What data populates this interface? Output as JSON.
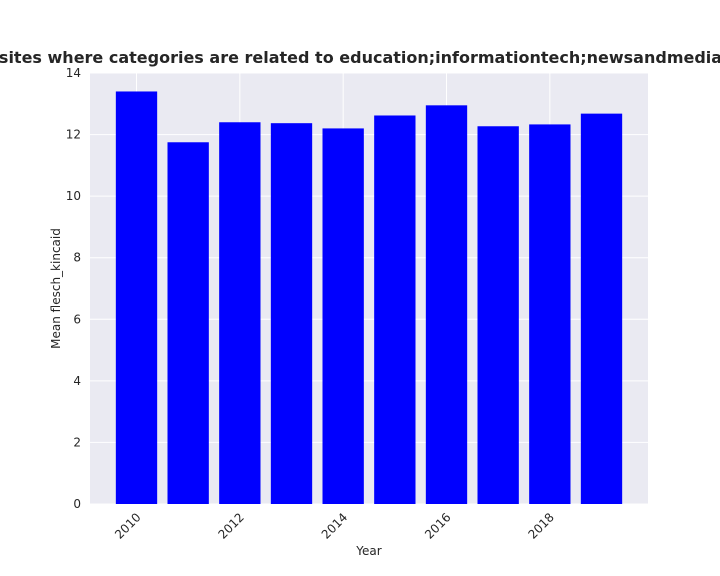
{
  "chart_data": {
    "type": "bar",
    "title": "Mean flesch_kincaid over years for websites where categories are related to education;informationtech;newsandmedia Mean flesch_kincaid in privacy policies",
    "xlabel": "Year",
    "ylabel": "Mean flesch_kincaid",
    "categories": [
      2010,
      2011,
      2012,
      2013,
      2014,
      2015,
      2016,
      2017,
      2018,
      2019
    ],
    "values": [
      13.4,
      11.75,
      12.4,
      12.37,
      12.2,
      12.62,
      12.95,
      12.27,
      12.33,
      12.68
    ],
    "x_tick_labels": [
      "2010",
      "2012",
      "2014",
      "2016",
      "2018"
    ],
    "x_tick_values": [
      2010,
      2012,
      2014,
      2016,
      2018
    ],
    "y_ticks": [
      0,
      2,
      4,
      6,
      8,
      10,
      12,
      14
    ],
    "ylim": [
      0,
      14
    ],
    "bar_color": "#0000ff",
    "plot_background": "#eaeaf2",
    "grid_color": "#ffffff",
    "grid": true
  }
}
